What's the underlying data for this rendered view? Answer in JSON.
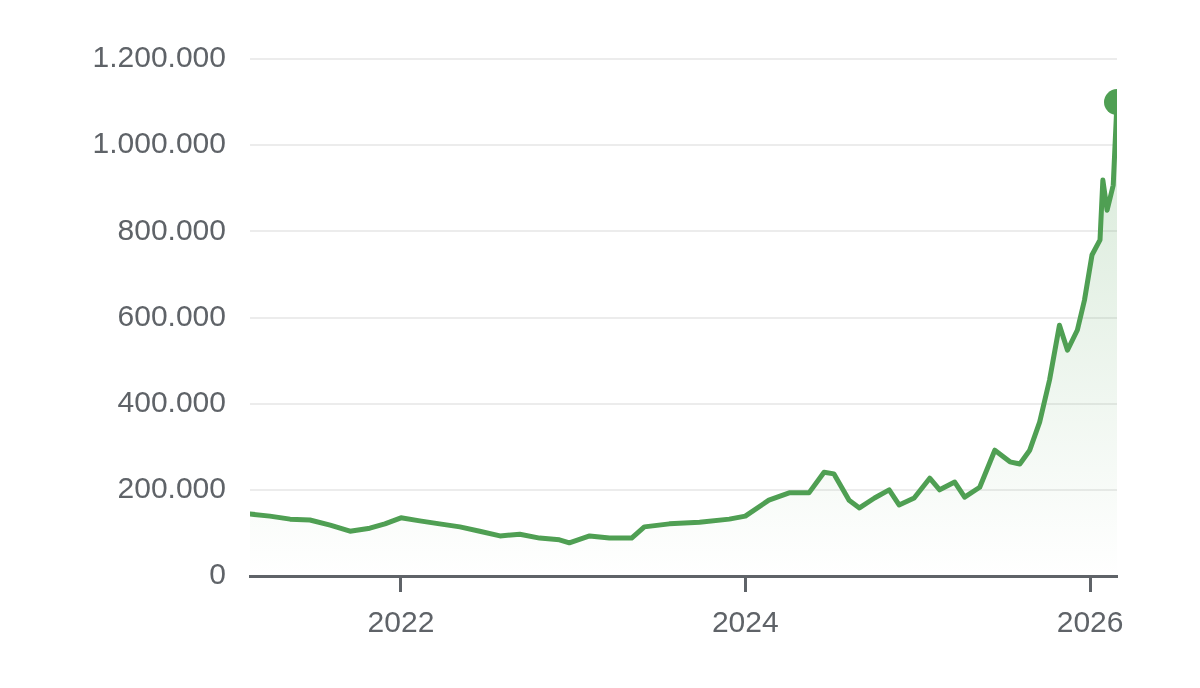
{
  "chart_data": {
    "type": "area",
    "x": [
      "2021-02-15",
      "2021-03-29",
      "2021-05-11",
      "2021-06-22",
      "2021-08-04",
      "2021-09-15",
      "2021-10-27",
      "2021-11-28",
      "2022-01-01",
      "2022-02-10",
      "2022-03-24",
      "2022-05-06",
      "2022-06-17",
      "2022-07-30",
      "2022-09-10",
      "2022-10-22",
      "2022-12-03",
      "2022-12-24",
      "2023-02-05",
      "2023-03-19",
      "2023-05-05",
      "2023-06-01",
      "2023-07-24",
      "2023-09-26",
      "2023-11-28",
      "2024-01-01",
      "2024-02-20",
      "2024-04-03",
      "2024-05-15",
      "2024-06-16",
      "2024-07-07",
      "2024-08-08",
      "2024-08-30",
      "2024-10-01",
      "2024-11-01",
      "2024-11-22",
      "2024-12-24",
      "2025-01-26",
      "2025-02-16",
      "2025-03-20",
      "2025-04-10",
      "2025-05-12",
      "2025-06-13",
      "2025-07-15",
      "2025-08-05",
      "2025-08-26",
      "2025-09-16",
      "2025-10-07",
      "2025-10-28",
      "2025-11-14",
      "2025-12-05",
      "2025-12-20",
      "2026-01-05",
      "2026-01-22",
      "2026-01-28",
      "2026-02-06",
      "2026-02-19",
      "2026-02-27"
    ],
    "series": [
      {
        "color": "#4f9f53",
        "values": [
          144000,
          139000,
          132000,
          130000,
          118000,
          104000,
          111000,
          121000,
          135000,
          128000,
          121000,
          114000,
          104000,
          93000,
          97000,
          88000,
          84000,
          77000,
          93000,
          88000,
          88000,
          114000,
          121000,
          125000,
          132000,
          139000,
          176000,
          193000,
          193000,
          241000,
          237000,
          176000,
          158000,
          181000,
          200000,
          165000,
          181000,
          227000,
          200000,
          218000,
          183000,
          206000,
          292000,
          265000,
          260000,
          292000,
          357000,
          455000,
          582000,
          524000,
          571000,
          640000,
          745000,
          780000,
          919000,
          849000,
          907000,
          1100000
        ]
      }
    ],
    "xlim": [
      "2021-02-15",
      "2026-02-27"
    ],
    "xticks": [
      "2022",
      "2024",
      "2026"
    ],
    "ylim": [
      0,
      1200000
    ],
    "yticks": [
      0,
      {
        "value": 200000,
        "label": "200.000"
      },
      {
        "value": 400000,
        "label": "400.000"
      },
      {
        "value": 600000,
        "label": "600.000"
      },
      {
        "value": 800000,
        "label": "800.000"
      },
      {
        "value": 1000000,
        "label": "1.000.000"
      },
      {
        "value": 1200000,
        "label": "1.200.000"
      }
    ],
    "grid": "y",
    "legend": false
  }
}
